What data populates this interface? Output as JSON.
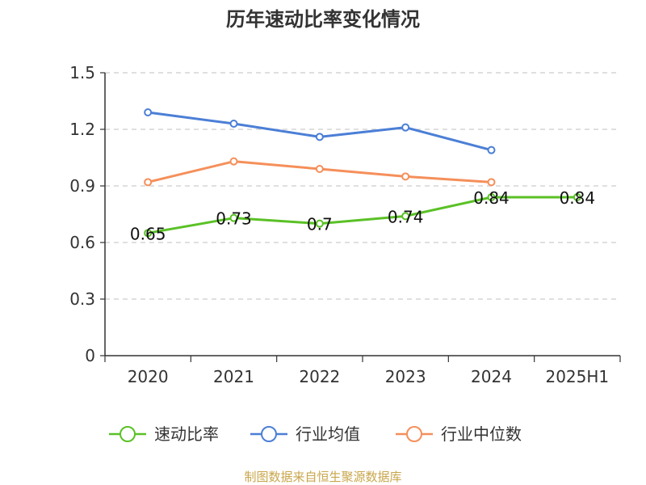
{
  "chart_data": {
    "type": "line",
    "title": "历年速动比率变化情况",
    "categories": [
      "2020",
      "2021",
      "2022",
      "2023",
      "2024",
      "2025H1"
    ],
    "yticks": [
      "0",
      "0.3",
      "0.6",
      "0.9",
      "1.2",
      "1.5"
    ],
    "ylim": [
      0,
      1.5
    ],
    "grid": true,
    "legend_position": "bottom",
    "series": [
      {
        "name": "速动比率",
        "color": "#5ac126",
        "values": [
          0.65,
          0.73,
          0.7,
          0.74,
          0.84,
          0.84
        ],
        "labels": [
          "0.65",
          "0.73",
          "0.7",
          "0.74",
          "0.84",
          "0.84"
        ]
      },
      {
        "name": "行业均值",
        "color": "#4b7fd6",
        "values": [
          1.29,
          1.23,
          1.16,
          1.21,
          1.09,
          null
        ]
      },
      {
        "name": "行业中位数",
        "color": "#f58f5a",
        "values": [
          0.92,
          1.03,
          0.99,
          0.95,
          0.92,
          null
        ]
      }
    ],
    "source": "制图数据来自恒生聚源数据库"
  }
}
